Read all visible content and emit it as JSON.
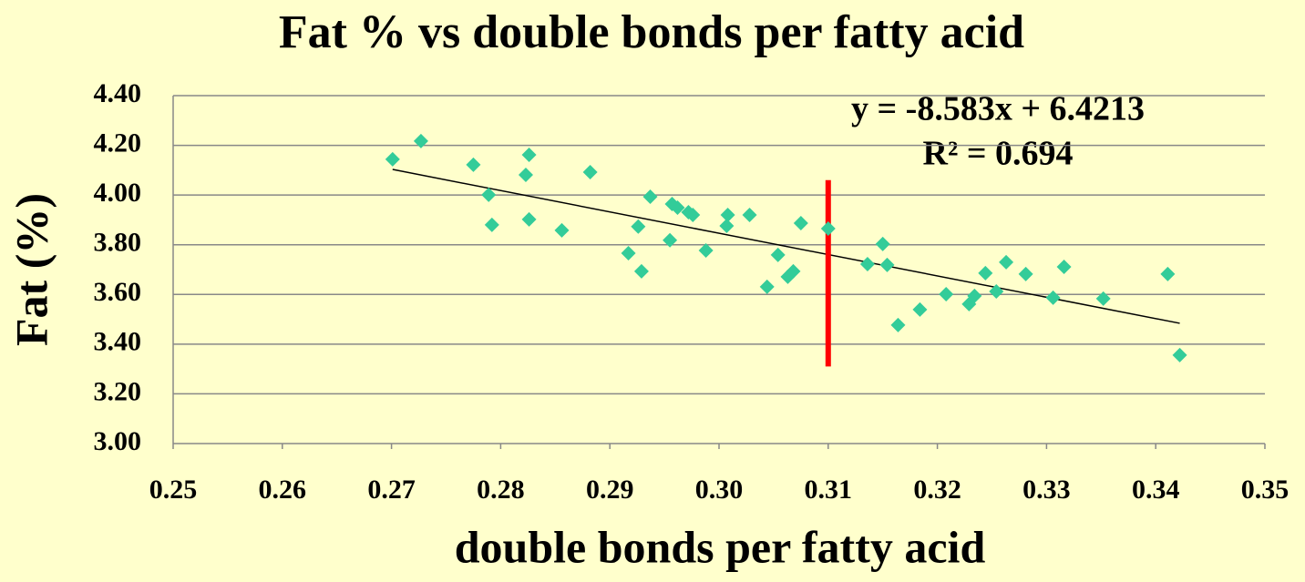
{
  "chart_data": {
    "type": "scatter",
    "title": "Fat % vs double bonds per fatty acid",
    "x_label": "double bonds per fatty acid",
    "y_label": "Fat (%)",
    "xlim": [
      0.25,
      0.35
    ],
    "xticks": [
      0.25,
      0.26,
      0.27,
      0.28,
      0.29,
      {
        "value": 0.3,
        "label": "0.30"
      },
      0.31,
      0.32,
      0.33,
      0.34,
      0.35
    ],
    "ylim": [
      3.0,
      4.4
    ],
    "yticks": [
      {
        "value": 3.0,
        "label": "3.00"
      },
      {
        "value": 3.2,
        "label": "3.20"
      },
      {
        "value": 3.4,
        "label": "3.40"
      },
      {
        "value": 3.6,
        "label": "3.60"
      },
      {
        "value": 3.8,
        "label": "3.80"
      },
      {
        "value": 4.0,
        "label": "4.00"
      },
      {
        "value": 4.2,
        "label": "4.20"
      },
      {
        "value": 4.4,
        "label": "4.40"
      }
    ],
    "grid": true,
    "series": [
      {
        "color": "#33cc99",
        "x": [
          0.2701,
          0.2727,
          0.2775,
          0.2789,
          0.2792,
          0.2823,
          0.2826,
          0.2826,
          0.2856,
          0.2882,
          0.2917,
          0.2926,
          0.2929,
          0.2937,
          0.2955,
          0.2957,
          0.2962,
          0.2972,
          0.2976,
          0.2988,
          0.3007,
          0.3008,
          0.3028,
          0.3044,
          0.3054,
          0.3063,
          0.3068,
          0.3075,
          0.31,
          0.3136,
          0.315,
          0.3154,
          0.3164,
          0.3184,
          0.3208,
          0.3229,
          0.3234,
          0.3244,
          0.3254,
          0.3263,
          0.3281,
          0.3306,
          0.3316,
          0.3352,
          0.3411,
          0.3422
        ],
        "values": [
          4.144,
          4.217,
          4.122,
          4.001,
          3.88,
          4.081,
          4.162,
          3.902,
          3.858,
          4.092,
          3.766,
          3.873,
          3.693,
          3.993,
          3.818,
          3.964,
          3.949,
          3.931,
          3.92,
          3.777,
          3.876,
          3.92,
          3.92,
          3.631,
          3.759,
          3.671,
          3.693,
          3.887,
          3.865,
          3.722,
          3.803,
          3.719,
          3.477,
          3.539,
          3.601,
          3.561,
          3.594,
          3.686,
          3.612,
          3.73,
          3.682,
          3.587,
          3.711,
          3.583,
          3.682,
          3.356
        ]
      }
    ],
    "trendline": {
      "color": "#000000",
      "x": [
        0.2701,
        0.3422
      ],
      "values": [
        4.103,
        3.484
      ],
      "equation": "y = -8.583x + 6.4213",
      "r_squared": "R² = 0.694"
    },
    "reference_line": {
      "color": "#ff0000",
      "x": 0.31,
      "y": [
        3.31,
        4.06
      ]
    }
  }
}
